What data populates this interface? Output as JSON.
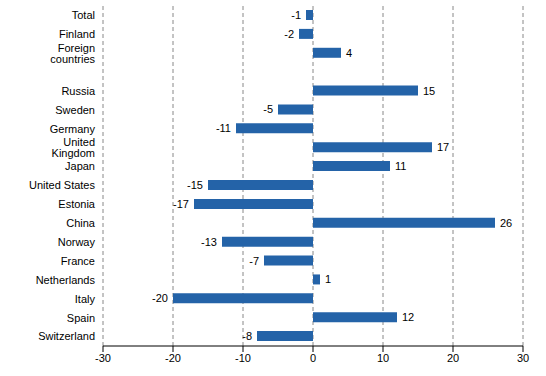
{
  "chart_data": {
    "type": "bar",
    "orientation": "horizontal",
    "categories": [
      "Total",
      "Finland",
      "Foreign countries",
      null,
      "Russia",
      "Sweden",
      "Germany",
      "United Kingdom",
      "Japan",
      "United States",
      "Estonia",
      "China",
      "Norway",
      "France",
      "Netherlands",
      "Italy",
      "Spain",
      "Switzerland"
    ],
    "values": [
      -1,
      -2,
      4,
      null,
      15,
      -5,
      -11,
      17,
      11,
      -15,
      -17,
      26,
      -13,
      -7,
      1,
      -20,
      12,
      -8
    ],
    "color": "#2463a8",
    "xlim": [
      -30,
      30
    ],
    "xticks": [
      -30,
      -20,
      -10,
      0,
      10,
      20,
      30
    ],
    "grid": true,
    "data_labels": true
  }
}
